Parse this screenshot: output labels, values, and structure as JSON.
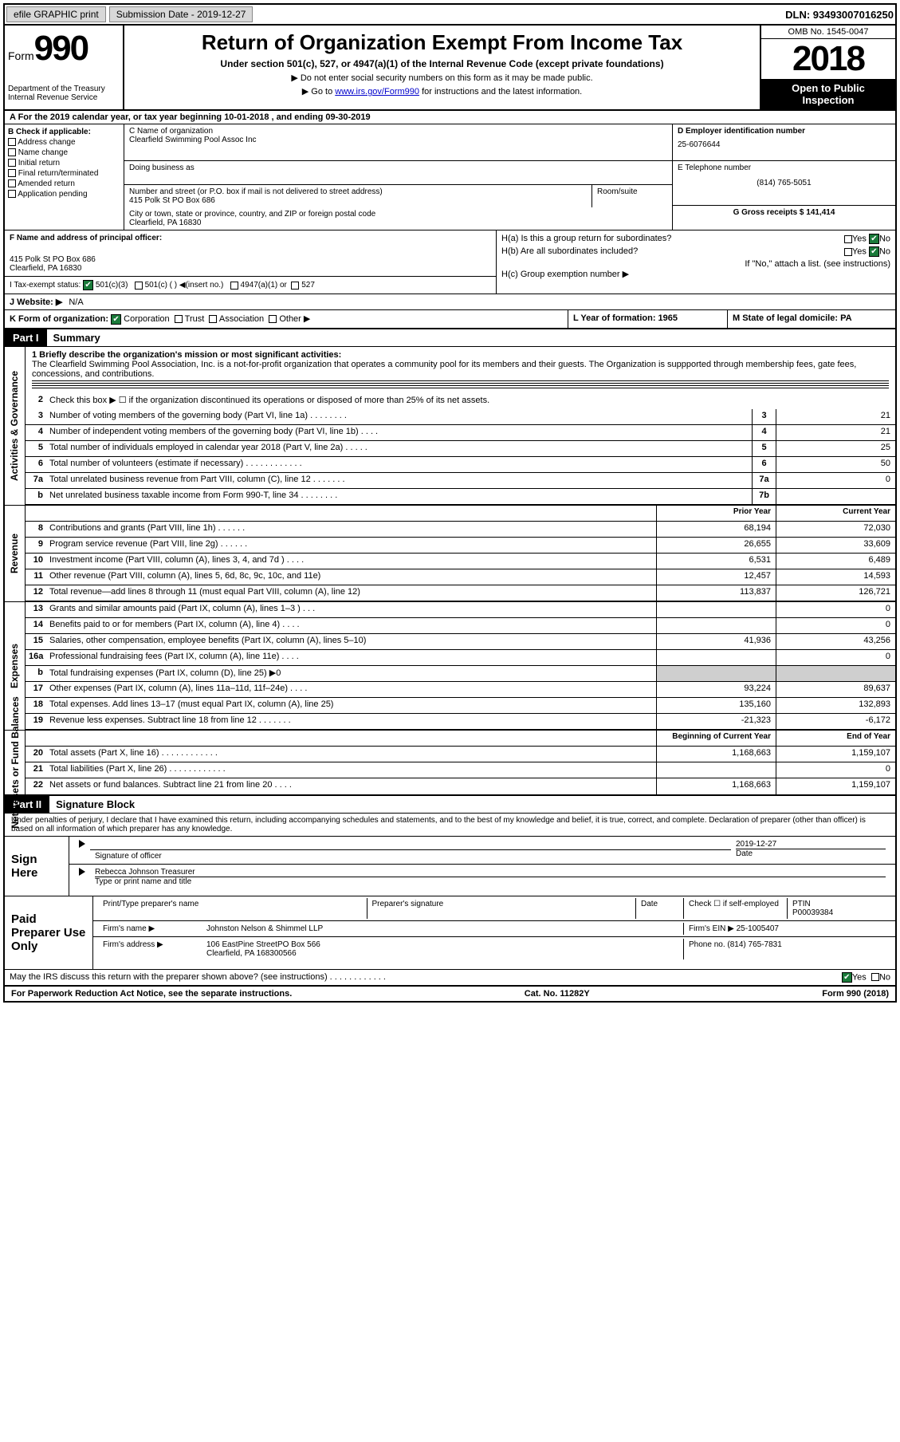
{
  "topbar": {
    "efile": "efile GRAPHIC print",
    "submission_label": "Submission Date - 2019-12-27",
    "dln": "DLN: 93493007016250"
  },
  "header": {
    "form_label": "Form",
    "form_number": "990",
    "dept1": "Department of the Treasury",
    "dept2": "Internal Revenue Service",
    "title": "Return of Organization Exempt From Income Tax",
    "subtitle": "Under section 501(c), 527, or 4947(a)(1) of the Internal Revenue Code (except private foundations)",
    "note1": "▶ Do not enter social security numbers on this form as it may be made public.",
    "note2_prefix": "▶ Go to ",
    "note2_link": "www.irs.gov/Form990",
    "note2_suffix": " for instructions and the latest information.",
    "omb": "OMB No. 1545-0047",
    "year": "2018",
    "open": "Open to Public Inspection"
  },
  "line_a": "A  For the 2019 calendar year, or tax year beginning 10-01-2018    , and ending 09-30-2019",
  "col_b": {
    "header": "B Check if applicable:",
    "items": [
      "Address change",
      "Name change",
      "Initial return",
      "Final return/terminated",
      "Amended return",
      "Application pending"
    ]
  },
  "col_c": {
    "name_label": "C Name of organization",
    "name": "Clearfield Swimming Pool Assoc Inc",
    "dba_label": "Doing business as",
    "addr_label": "Number and street (or P.O. box if mail is not delivered to street address)",
    "addr": "415 Polk St PO Box 686",
    "room_label": "Room/suite",
    "city_label": "City or town, state or province, country, and ZIP or foreign postal code",
    "city": "Clearfield, PA  16830"
  },
  "col_d": {
    "ein_label": "D Employer identification number",
    "ein": "25-6076644",
    "phone_label": "E Telephone number",
    "phone": "(814) 765-5051",
    "gross_label": "G Gross receipts $ 141,414"
  },
  "f_block": {
    "label": "F  Name and address of principal officer:",
    "addr1": "415 Polk St PO Box 686",
    "addr2": "Clearfield, PA  16830"
  },
  "h_block": {
    "ha": "H(a)  Is this a group return for subordinates?",
    "hb": "H(b)  Are all subordinates included?",
    "hb_note": "If \"No,\" attach a list. (see instructions)",
    "hc": "H(c)  Group exemption number ▶",
    "yes": "Yes",
    "no": "No"
  },
  "tax_status": {
    "label": "I    Tax-exempt status:",
    "opt1": "501(c)(3)",
    "opt2": "501(c) (  ) ◀(insert no.)",
    "opt3": "4947(a)(1) or",
    "opt4": "527"
  },
  "website": {
    "label": "J   Website: ▶",
    "value": "N/A"
  },
  "k_line": {
    "label": "K Form of organization:",
    "opts": [
      "Corporation",
      "Trust",
      "Association",
      "Other ▶"
    ]
  },
  "l_line": {
    "label": "L Year of formation: 1965"
  },
  "m_line": {
    "label": "M State of legal domicile: PA"
  },
  "part1": {
    "hdr": "Part I",
    "title": "Summary",
    "q1_label": "1   Briefly describe the organization's mission or most significant activities:",
    "q1_text": "The Clearfield Swimming Pool Association, Inc. is a not-for-profit organization that operates a community pool for its members and their guests. The Organization is suppported through membership fees, gate fees, concessions, and contributions.",
    "q2": "Check this box ▶ ☐  if the organization discontinued its operations or disposed of more than 25% of its net assets.",
    "tabs": {
      "activities": "Activities & Governance",
      "revenue": "Revenue",
      "expenses": "Expenses",
      "netassets": "Net Assets or Fund Balances"
    },
    "col_prior": "Prior Year",
    "col_current": "Current Year",
    "col_begin": "Beginning of Current Year",
    "col_end": "End of Year",
    "lines_gov": [
      {
        "n": "3",
        "d": "Number of voting members of the governing body (Part VI, line 1a)  .  .  .  .  .  .  .  .",
        "box": "3",
        "v": "21"
      },
      {
        "n": "4",
        "d": "Number of independent voting members of the governing body (Part VI, line 1b)  .  .  .  .",
        "box": "4",
        "v": "21"
      },
      {
        "n": "5",
        "d": "Total number of individuals employed in calendar year 2018 (Part V, line 2a)  .  .  .  .  .",
        "box": "5",
        "v": "25"
      },
      {
        "n": "6",
        "d": "Total number of volunteers (estimate if necessary)    .  .  .  .  .  .  .  .  .  .  .  .",
        "box": "6",
        "v": "50"
      },
      {
        "n": "7a",
        "d": "Total unrelated business revenue from Part VIII, column (C), line 12  .  .  .  .  .  .  .",
        "box": "7a",
        "v": "0"
      },
      {
        "n": "b",
        "d": "Net unrelated business taxable income from Form 990-T, line 34    .  .  .  .  .  .  .  .",
        "box": "7b",
        "v": ""
      }
    ],
    "lines_rev": [
      {
        "n": "8",
        "d": "Contributions and grants (Part VIII, line 1h)  .  .  .  .  .  .",
        "p": "68,194",
        "c": "72,030"
      },
      {
        "n": "9",
        "d": "Program service revenue (Part VIII, line 2g)    .  .  .  .  .  .",
        "p": "26,655",
        "c": "33,609"
      },
      {
        "n": "10",
        "d": "Investment income (Part VIII, column (A), lines 3, 4, and 7d )  .  .  .  .",
        "p": "6,531",
        "c": "6,489"
      },
      {
        "n": "11",
        "d": "Other revenue (Part VIII, column (A), lines 5, 6d, 8c, 9c, 10c, and 11e)",
        "p": "12,457",
        "c": "14,593"
      },
      {
        "n": "12",
        "d": "Total revenue—add lines 8 through 11 (must equal Part VIII, column (A), line 12)",
        "p": "113,837",
        "c": "126,721"
      }
    ],
    "lines_exp": [
      {
        "n": "13",
        "d": "Grants and similar amounts paid (Part IX, column (A), lines 1–3 )  .  .  .",
        "p": "",
        "c": "0"
      },
      {
        "n": "14",
        "d": "Benefits paid to or for members (Part IX, column (A), line 4)  .  .  .  .",
        "p": "",
        "c": "0"
      },
      {
        "n": "15",
        "d": "Salaries, other compensation, employee benefits (Part IX, column (A), lines 5–10)",
        "p": "41,936",
        "c": "43,256"
      },
      {
        "n": "16a",
        "d": "Professional fundraising fees (Part IX, column (A), line 11e)  .  .  .  .",
        "p": "",
        "c": "0"
      },
      {
        "n": "b",
        "d": "Total fundraising expenses (Part IX, column (D), line 25) ▶0",
        "p": "grey",
        "c": "grey"
      },
      {
        "n": "17",
        "d": "Other expenses (Part IX, column (A), lines 11a–11d, 11f–24e)  .  .  .  .",
        "p": "93,224",
        "c": "89,637"
      },
      {
        "n": "18",
        "d": "Total expenses. Add lines 13–17 (must equal Part IX, column (A), line 25)",
        "p": "135,160",
        "c": "132,893"
      },
      {
        "n": "19",
        "d": "Revenue less expenses. Subtract line 18 from line 12 .  .  .  .  .  .  .",
        "p": "-21,323",
        "c": "-6,172"
      }
    ],
    "lines_net": [
      {
        "n": "20",
        "d": "Total assets (Part X, line 16)  .  .  .  .  .  .  .  .  .  .  .  .",
        "p": "1,168,663",
        "c": "1,159,107"
      },
      {
        "n": "21",
        "d": "Total liabilities (Part X, line 26)  .  .  .  .  .  .  .  .  .  .  .  .",
        "p": "",
        "c": "0"
      },
      {
        "n": "22",
        "d": "Net assets or fund balances. Subtract line 21 from line 20  .  .  .  .",
        "p": "1,168,663",
        "c": "1,159,107"
      }
    ]
  },
  "part2": {
    "hdr": "Part II",
    "title": "Signature Block",
    "decl": "Under penalties of perjury, I declare that I have examined this return, including accompanying schedules and statements, and to the best of my knowledge and belief, it is true, correct, and complete. Declaration of preparer (other than officer) is based on all information of which preparer has any knowledge."
  },
  "sign": {
    "label": "Sign Here",
    "sig_officer": "Signature of officer",
    "date": "2019-12-27",
    "date_label": "Date",
    "name": "Rebecca Johnson Treasurer",
    "name_label": "Type or print name and title"
  },
  "preparer": {
    "label": "Paid Preparer Use Only",
    "print_label": "Print/Type preparer's name",
    "sig_label": "Preparer's signature",
    "date_label": "Date",
    "check_label": "Check ☐ if self-employed",
    "ptin_label": "PTIN",
    "ptin": "P00039384",
    "firm_name_label": "Firm's name    ▶",
    "firm_name": "Johnston Nelson & Shimmel LLP",
    "firm_ein_label": "Firm's EIN ▶",
    "firm_ein": "25-1005407",
    "firm_addr_label": "Firm's address ▶",
    "firm_addr": "106 EastPine StreetPO Box 566",
    "firm_city": "Clearfield, PA  168300566",
    "phone_label": "Phone no.",
    "phone": "(814) 765-7831"
  },
  "discuss": {
    "text": "May the IRS discuss this return with the preparer shown above? (see instructions)    .  .  .  .  .  .  .  .  .  .  .  .",
    "yes": "Yes",
    "no": "No"
  },
  "footer": {
    "left": "For Paperwork Reduction Act Notice, see the separate instructions.",
    "mid": "Cat. No. 11282Y",
    "right": "Form 990 (2018)"
  }
}
